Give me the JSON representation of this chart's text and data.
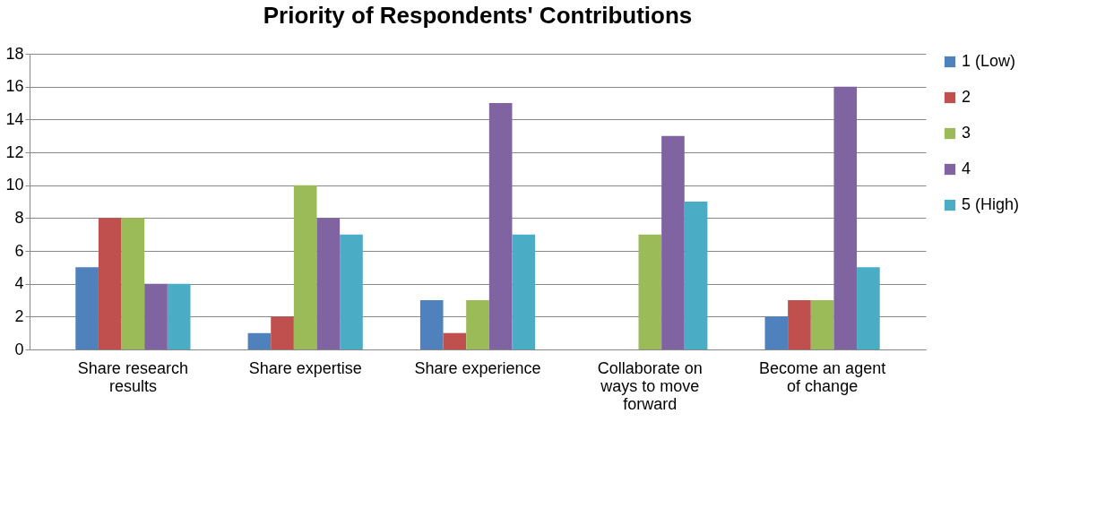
{
  "chart_data": {
    "type": "bar",
    "title": "Priority of Respondents' Contributions",
    "categories": [
      "Share research results",
      "Share expertise",
      "Share experience",
      "Collaborate on ways to move forward",
      "Become an agent of change"
    ],
    "series": [
      {
        "name": "1 (Low)",
        "color": "#4f81bd",
        "values": [
          5,
          1,
          3,
          0,
          2
        ]
      },
      {
        "name": "2",
        "color": "#c0504d",
        "values": [
          8,
          2,
          1,
          0,
          3
        ]
      },
      {
        "name": "3",
        "color": "#9bbb59",
        "values": [
          8,
          10,
          3,
          7,
          3
        ]
      },
      {
        "name": "4",
        "color": "#8064a2",
        "values": [
          4,
          8,
          15,
          13,
          16
        ]
      },
      {
        "name": "5 (High)",
        "color": "#4bacc6",
        "values": [
          4,
          7,
          7,
          9,
          5
        ]
      }
    ],
    "ylim": [
      0,
      18
    ],
    "yticks": [
      0,
      2,
      4,
      6,
      8,
      10,
      12,
      14,
      16,
      18
    ],
    "grid": "y",
    "legend": "right"
  }
}
